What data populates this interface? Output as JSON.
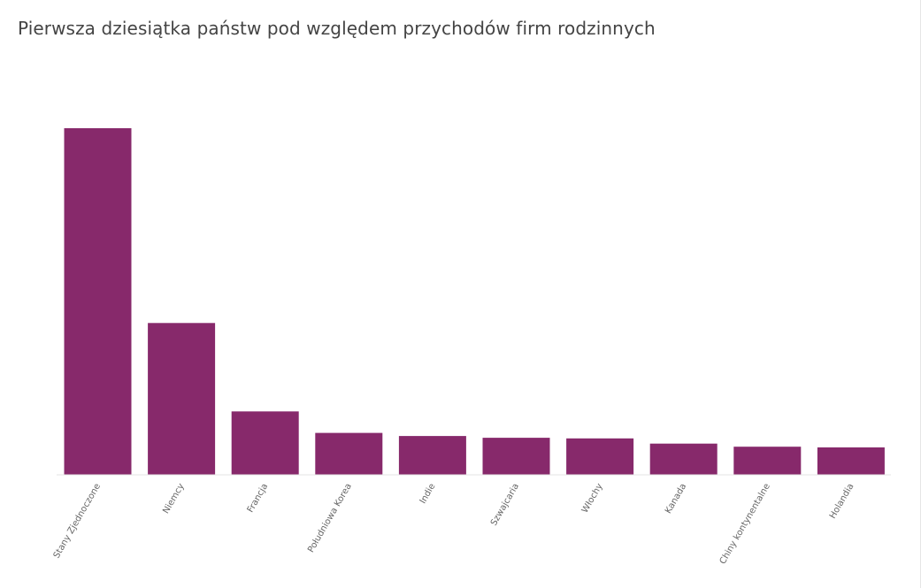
{
  "page": {
    "title": "Pierwsza dziesiątka państw pod względem przychodów firm rodzinnych"
  },
  "colors": {
    "bar": "#87296b",
    "axis": "#e6e6e6",
    "tick_text": "#666666",
    "title_text": "#444444"
  },
  "chart_data": {
    "type": "bar",
    "title": "Pierwsza dziesiątka państw pod względem przychodów firm rodzinnych",
    "xlabel": "",
    "ylabel": "",
    "categories": [
      "Stany Zjednoczone",
      "Niemcy",
      "Francja",
      "Południowa Korea",
      "Indie",
      "Szwajcaria",
      "Włochy",
      "Kanada",
      "Chiny kontynentalne",
      "Holandia"
    ],
    "values": [
      100,
      43.8,
      18.3,
      12.1,
      11.2,
      10.7,
      10.5,
      9.0,
      8.1,
      7.9
    ],
    "ylim": [
      0,
      100
    ],
    "grid": false,
    "legend": "none"
  }
}
